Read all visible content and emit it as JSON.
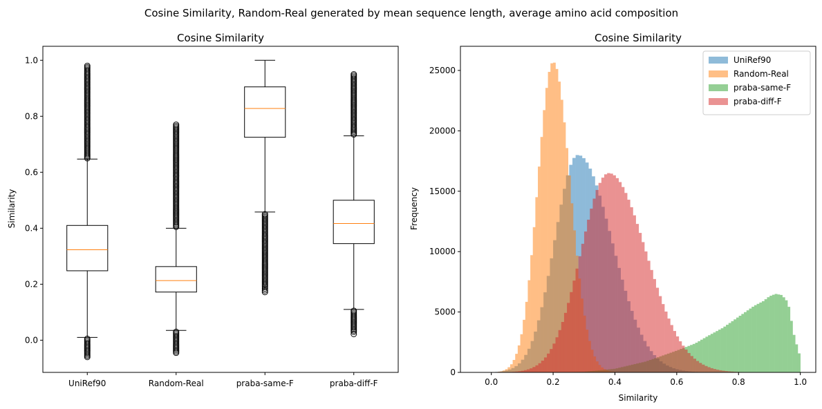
{
  "suptitle": "Cosine Similarity, Random-Real generated by mean sequence length, average amino acid composition",
  "chart_data": [
    {
      "type": "box",
      "title": "Cosine Similarity",
      "xlabel": "",
      "ylabel": "Similarity",
      "ylim": [
        -0.115,
        1.05
      ],
      "yticks": [
        0.0,
        0.2,
        0.4,
        0.6,
        0.8,
        1.0
      ],
      "median_color": "#ff7f0e",
      "categories": [
        "UniRef90",
        "Random-Real",
        "praba-same-F",
        "praba-diff-F"
      ],
      "boxes": [
        {
          "name": "UniRef90",
          "whisker_low": 0.01,
          "q1": 0.248,
          "median": 0.323,
          "q3": 0.41,
          "whisker_high": 0.647,
          "outliers_low": [
            -0.06,
            -0.05,
            -0.04,
            -0.03,
            -0.025,
            -0.02,
            -0.015,
            -0.01,
            -0.005,
            0.0,
            0.005
          ],
          "outliers_high": [
            0.65,
            0.66,
            0.67,
            0.68,
            0.69,
            0.7,
            0.71,
            0.72,
            0.73,
            0.74,
            0.75,
            0.76,
            0.77,
            0.78,
            0.79,
            0.8,
            0.81,
            0.82,
            0.83,
            0.84,
            0.85,
            0.86,
            0.87,
            0.88,
            0.89,
            0.9,
            0.91,
            0.92,
            0.93,
            0.94,
            0.95,
            0.96,
            0.98
          ]
        },
        {
          "name": "Random-Real",
          "whisker_low": 0.035,
          "q1": 0.172,
          "median": 0.213,
          "q3": 0.263,
          "whisker_high": 0.4,
          "outliers_low": [
            -0.045,
            -0.04,
            -0.03,
            -0.02,
            -0.01,
            0.0,
            0.01,
            0.02,
            0.03
          ],
          "outliers_high": [
            0.405,
            0.42,
            0.44,
            0.46,
            0.48,
            0.5,
            0.52,
            0.54,
            0.56,
            0.58,
            0.6,
            0.62,
            0.64,
            0.66,
            0.68,
            0.7,
            0.72,
            0.735,
            0.75,
            0.76,
            0.77
          ]
        },
        {
          "name": "praba-same-F",
          "whisker_low": 0.458,
          "q1": 0.725,
          "median": 0.828,
          "q3": 0.905,
          "whisker_high": 1.0,
          "outliers_low": [
            0.172,
            0.19,
            0.21,
            0.23,
            0.25,
            0.27,
            0.29,
            0.31,
            0.33,
            0.35,
            0.37,
            0.39,
            0.41,
            0.43,
            0.45
          ],
          "outliers_high": []
        },
        {
          "name": "praba-diff-F",
          "whisker_low": 0.11,
          "q1": 0.345,
          "median": 0.417,
          "q3": 0.5,
          "whisker_high": 0.73,
          "outliers_low": [
            0.022,
            0.03,
            0.05,
            0.06,
            0.07,
            0.08,
            0.09,
            0.1,
            0.105
          ],
          "outliers_high": [
            0.735,
            0.75,
            0.77,
            0.79,
            0.81,
            0.83,
            0.85,
            0.87,
            0.89,
            0.91,
            0.93,
            0.95
          ]
        }
      ]
    },
    {
      "type": "histogram",
      "title": "Cosine Similarity",
      "xlabel": "Similarity",
      "ylabel": "Frequency",
      "xlim": [
        -0.1,
        1.05
      ],
      "ylim": [
        0,
        27000
      ],
      "xticks": [
        0.0,
        0.2,
        0.4,
        0.6,
        0.8,
        1.0
      ],
      "yticks": [
        0,
        5000,
        10000,
        15000,
        20000,
        25000
      ],
      "legend_position": "top-right",
      "opacity": 0.5,
      "series": [
        {
          "name": "UniRef90",
          "color": "#1f77b4",
          "kind": "gauss",
          "min": -0.06,
          "max": 0.98,
          "peak_x": 0.28,
          "peak_y": 18000,
          "sigma_left": 0.075,
          "sigma_right": 0.11
        },
        {
          "name": "Random-Real",
          "color": "#ff7f0e",
          "kind": "gauss",
          "min": -0.045,
          "max": 0.77,
          "peak_x": 0.2,
          "peak_y": 25700,
          "sigma_left": 0.05,
          "sigma_right": 0.055
        },
        {
          "name": "praba-same-F",
          "color": "#2ca02c",
          "kind": "points",
          "x": [
            0.17,
            0.3,
            0.4,
            0.5,
            0.6,
            0.66,
            0.7,
            0.75,
            0.8,
            0.85,
            0.88,
            0.9,
            0.92,
            0.94,
            0.96,
            0.98,
            1.0
          ],
          "y": [
            0,
            50,
            300,
            900,
            1800,
            2400,
            3000,
            3700,
            4600,
            5500,
            5900,
            6300,
            6500,
            6400,
            5800,
            3000,
            1200
          ]
        },
        {
          "name": "praba-diff-F",
          "color": "#d62728",
          "kind": "gauss",
          "min": 0.022,
          "max": 0.95,
          "peak_x": 0.38,
          "peak_y": 16500,
          "sigma_left": 0.09,
          "sigma_right": 0.12
        }
      ]
    }
  ]
}
